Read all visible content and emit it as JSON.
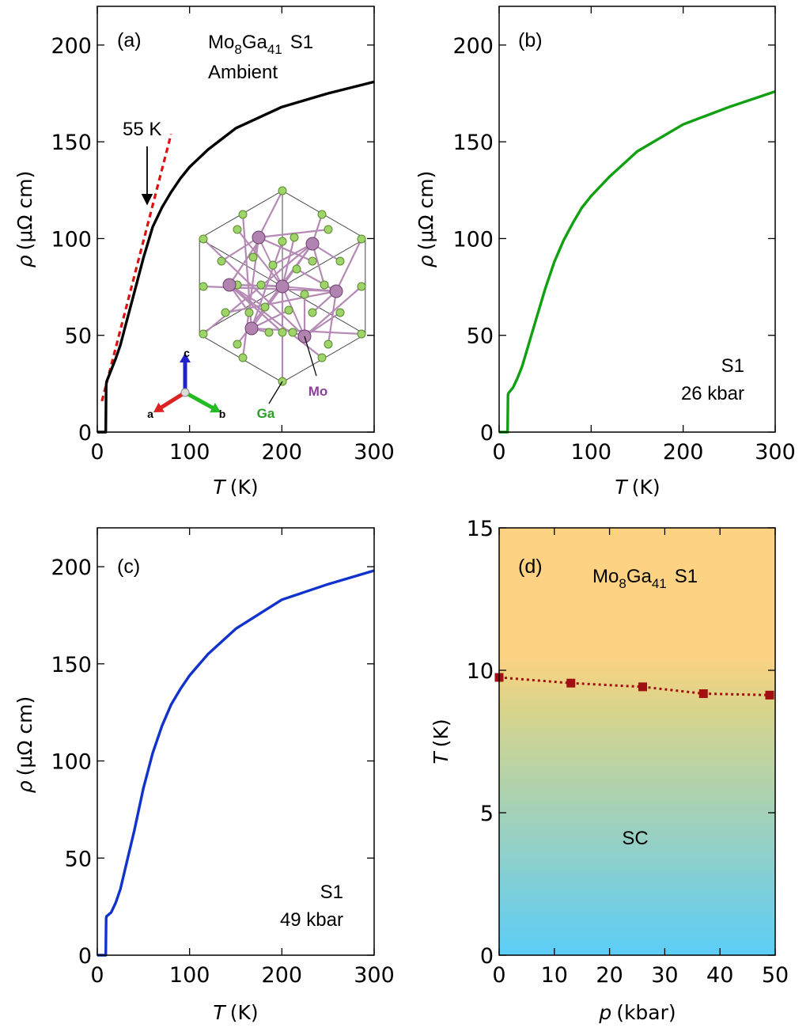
{
  "chart_data": [
    {
      "id": "a",
      "type": "line",
      "panel_label": "(a)",
      "xlabel_var": "T",
      "xlabel_unit": "(K)",
      "ylabel_var": "ρ",
      "ylabel_unit": "(μΩ cm)",
      "xlim": [
        0,
        300
      ],
      "ylim": [
        0,
        220
      ],
      "xticks": [
        0,
        100,
        200,
        300
      ],
      "yticks": [
        0,
        50,
        100,
        150,
        200
      ],
      "color": "#000000",
      "annotation_lines": [
        "Mo8Ga41 S1",
        "Ambient"
      ],
      "compound": {
        "base1": "Mo",
        "sub1": "8",
        "base2": "Ga",
        "sub2": "41",
        "suffix": "S1"
      },
      "ambient_label": "Ambient",
      "arrow_label": "55 K",
      "arrow_at": 55,
      "linear_fit": {
        "color": "#dd1111",
        "x": [
          5,
          80
        ],
        "y": [
          16,
          154
        ]
      },
      "x": [
        0,
        8,
        9.2,
        9.6,
        10,
        15,
        20,
        25,
        30,
        40,
        50,
        55,
        60,
        70,
        80,
        90,
        100,
        120,
        150,
        200,
        250,
        300
      ],
      "y": [
        0,
        0,
        0,
        24,
        26,
        32,
        38,
        45,
        54,
        72,
        90,
        98,
        106,
        116,
        124,
        131,
        137,
        146,
        157,
        168,
        175,
        181
      ],
      "inset": {
        "axis_labels": [
          "c",
          "a",
          "b"
        ],
        "atom_labels": [
          "Ga",
          "Mo"
        ]
      }
    },
    {
      "id": "b",
      "type": "line",
      "panel_label": "(b)",
      "xlabel_var": "T",
      "xlabel_unit": "(K)",
      "ylabel_var": "ρ",
      "ylabel_unit": "(μΩ cm)",
      "xlim": [
        0,
        300
      ],
      "ylim": [
        0,
        220
      ],
      "xticks": [
        0,
        100,
        200,
        300
      ],
      "yticks": [
        0,
        50,
        100,
        150,
        200
      ],
      "color": "#11a011",
      "annotation_lines": [
        "S1",
        "26 kbar"
      ],
      "x": [
        0,
        8,
        9.2,
        9.6,
        10,
        15,
        20,
        25,
        30,
        40,
        50,
        60,
        70,
        80,
        90,
        100,
        120,
        150,
        200,
        250,
        300
      ],
      "y": [
        0,
        0,
        0,
        19,
        20,
        23,
        28,
        34,
        42,
        58,
        74,
        88,
        99,
        108,
        116,
        122,
        132,
        145,
        159,
        168,
        176
      ]
    },
    {
      "id": "c",
      "type": "line",
      "panel_label": "(c)",
      "xlabel_var": "T",
      "xlabel_unit": "(K)",
      "ylabel_var": "ρ",
      "ylabel_unit": "(μΩ cm)",
      "xlim": [
        0,
        300
      ],
      "ylim": [
        0,
        220
      ],
      "xticks": [
        0,
        100,
        200,
        300
      ],
      "yticks": [
        0,
        50,
        100,
        150,
        200
      ],
      "color": "#1133cc",
      "annotation_lines": [
        "S1",
        "49 kbar"
      ],
      "x": [
        0,
        8,
        9.2,
        9.6,
        10,
        15,
        20,
        25,
        30,
        40,
        50,
        60,
        70,
        80,
        90,
        100,
        120,
        150,
        200,
        250,
        300
      ],
      "y": [
        0,
        0,
        0,
        19,
        20,
        22,
        27,
        34,
        44,
        64,
        86,
        104,
        118,
        129,
        137,
        144,
        155,
        168,
        183,
        191,
        198
      ]
    },
    {
      "id": "d",
      "type": "scatter",
      "panel_label": "(d)",
      "xlabel_var": "p",
      "xlabel_unit": "(kbar)",
      "ylabel_var": "T",
      "ylabel_unit": "(K)",
      "xlim": [
        0,
        50
      ],
      "ylim": [
        0,
        15
      ],
      "xticks": [
        0,
        10,
        20,
        30,
        40,
        50
      ],
      "yticks": [
        0,
        5,
        10,
        15
      ],
      "color": "#a01010",
      "compound": {
        "base1": "Mo",
        "sub1": "8",
        "base2": "Ga",
        "sub2": "41",
        "suffix": "S1"
      },
      "region_label": "SC",
      "background_colors": {
        "top": "#fdd283",
        "middle": "#d9d48a",
        "bottom": "#5ccdf7"
      },
      "x": [
        0,
        13,
        26,
        37,
        49
      ],
      "y": [
        9.75,
        9.55,
        9.42,
        9.18,
        9.13
      ]
    }
  ]
}
